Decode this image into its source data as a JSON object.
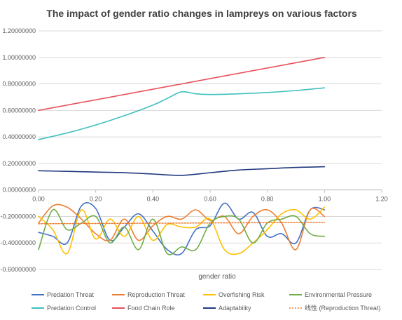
{
  "chart_data": {
    "type": "line",
    "title": "The impact of gender ratio changes in lampreys on various factors",
    "xlabel": "gender ratio",
    "ylabel": "",
    "xlim": [
      0,
      1.2
    ],
    "ylim": [
      -0.6,
      1.2
    ],
    "x_ticks": [
      "0.00",
      "0.20",
      "0.40",
      "0.60",
      "0.80",
      "1.00",
      "1.20"
    ],
    "y_ticks": [
      "1.20000000",
      "1.00000000",
      "0.80000000",
      "0.60000000",
      "0.40000000",
      "0.20000000",
      "0.00000000",
      "-0.20000000",
      "-0.40000000",
      "-0.60000000"
    ],
    "grid": "horizontal",
    "legend_position": "bottom",
    "series": [
      {
        "name": "Predation Threat",
        "color": "#4472C4",
        "x": [
          0,
          0.05,
          0.1,
          0.15,
          0.2,
          0.25,
          0.3,
          0.35,
          0.4,
          0.45,
          0.5,
          0.55,
          0.6,
          0.65,
          0.7,
          0.75,
          0.8,
          0.85,
          0.9,
          0.95,
          1.0
        ],
        "y": [
          -0.32,
          -0.35,
          -0.4,
          -0.12,
          -0.14,
          -0.38,
          -0.28,
          -0.18,
          -0.31,
          -0.45,
          -0.48,
          -0.3,
          -0.27,
          -0.1,
          -0.22,
          -0.17,
          -0.35,
          -0.33,
          -0.4,
          -0.15,
          -0.15
        ]
      },
      {
        "name": "Reproduction Threat",
        "color": "#ED7D31",
        "x": [
          0,
          0.05,
          0.1,
          0.15,
          0.2,
          0.25,
          0.3,
          0.35,
          0.4,
          0.45,
          0.5,
          0.55,
          0.6,
          0.65,
          0.7,
          0.75,
          0.8,
          0.85,
          0.9,
          0.95,
          1.0
        ],
        "y": [
          -0.25,
          -0.12,
          -0.13,
          -0.22,
          -0.33,
          -0.38,
          -0.22,
          -0.38,
          -0.27,
          -0.2,
          -0.22,
          -0.15,
          -0.23,
          -0.2,
          -0.33,
          -0.2,
          -0.15,
          -0.25,
          -0.45,
          -0.15,
          -0.2
        ]
      },
      {
        "name": "Overfishing Risk",
        "color": "#FFC000",
        "x": [
          0,
          0.05,
          0.1,
          0.15,
          0.2,
          0.25,
          0.3,
          0.35,
          0.4,
          0.45,
          0.5,
          0.55,
          0.6,
          0.65,
          0.7,
          0.75,
          0.8,
          0.85,
          0.9,
          0.95,
          1.0
        ],
        "y": [
          -0.2,
          -0.3,
          -0.48,
          -0.15,
          -0.37,
          -0.22,
          -0.35,
          -0.2,
          -0.38,
          -0.26,
          -0.28,
          -0.28,
          -0.22,
          -0.45,
          -0.48,
          -0.4,
          -0.3,
          -0.18,
          -0.15,
          -0.22,
          -0.13
        ]
      },
      {
        "name": "Environmental Pressure",
        "color": "#70AD47",
        "x": [
          0,
          0.05,
          0.1,
          0.15,
          0.2,
          0.25,
          0.3,
          0.35,
          0.4,
          0.45,
          0.5,
          0.55,
          0.6,
          0.65,
          0.7,
          0.75,
          0.8,
          0.85,
          0.9,
          0.95,
          1.0
        ],
        "y": [
          -0.45,
          -0.15,
          -0.3,
          -0.25,
          -0.2,
          -0.4,
          -0.28,
          -0.45,
          -0.22,
          -0.48,
          -0.43,
          -0.45,
          -0.25,
          -0.2,
          -0.22,
          -0.4,
          -0.25,
          -0.22,
          -0.2,
          -0.33,
          -0.35
        ]
      },
      {
        "name": "Predation Control",
        "color": "#40C0C0",
        "x": [
          0,
          0.1,
          0.2,
          0.3,
          0.4,
          0.45,
          0.5,
          0.55,
          0.6,
          0.7,
          0.8,
          0.9,
          1.0
        ],
        "y": [
          0.38,
          0.43,
          0.49,
          0.56,
          0.64,
          0.69,
          0.74,
          0.725,
          0.72,
          0.725,
          0.735,
          0.75,
          0.77
        ]
      },
      {
        "name": "Food Chain Role",
        "color": "#E8505B",
        "x": [
          0,
          1.0
        ],
        "y": [
          0.6,
          1.0
        ]
      },
      {
        "name": "Adaptability",
        "color": "#203880",
        "x": [
          0,
          0.1,
          0.2,
          0.3,
          0.4,
          0.5,
          0.6,
          0.7,
          0.8,
          0.9,
          1.0
        ],
        "y": [
          0.145,
          0.14,
          0.135,
          0.13,
          0.12,
          0.11,
          0.13,
          0.15,
          0.16,
          0.17,
          0.175
        ]
      },
      {
        "name": "线性 (Reproduction Threat)",
        "color": "#ED7D31",
        "dashed": true,
        "x": [
          0,
          1.0
        ],
        "y": [
          -0.255,
          -0.245
        ]
      }
    ]
  }
}
